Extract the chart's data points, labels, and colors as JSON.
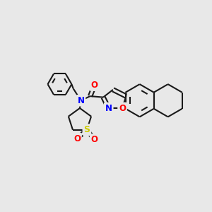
{
  "background_color": "#e8e8e8",
  "bond_color": "#1a1a1a",
  "bond_width": 1.5,
  "atom_colors": {
    "N": "#0000ff",
    "O": "#ff0000",
    "S": "#cccc00"
  },
  "fig_width": 3.0,
  "fig_height": 3.0,
  "dpi": 100
}
